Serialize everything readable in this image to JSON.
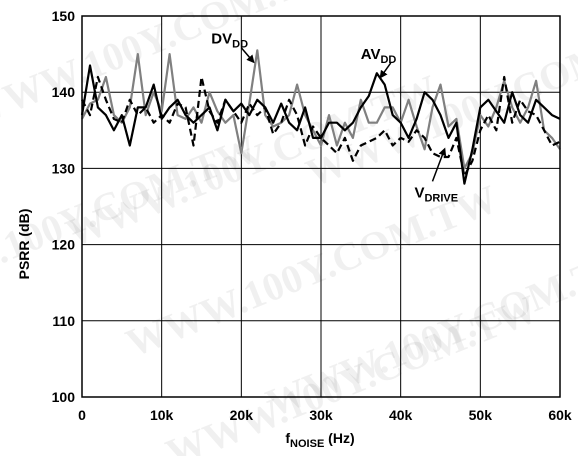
{
  "chart_data": {
    "type": "line",
    "xlabel": {
      "main": "f",
      "sub": "NOISE",
      "unit": " (Hz)"
    },
    "ylabel": "PSRR (dB)",
    "xlim": [
      0,
      60000
    ],
    "ylim": [
      100,
      150
    ],
    "x_ticks": [
      0,
      10000,
      20000,
      30000,
      40000,
      50000,
      60000
    ],
    "x_tick_labels": [
      "0",
      "10k",
      "20k",
      "30k",
      "40k",
      "50k",
      "60k"
    ],
    "y_ticks": [
      100,
      110,
      120,
      130,
      140,
      150
    ],
    "y_tick_labels": [
      "100",
      "110",
      "120",
      "130",
      "140",
      "150"
    ],
    "grid": true,
    "x": [
      0,
      1000,
      2000,
      3000,
      4000,
      5000,
      6000,
      7000,
      8000,
      9000,
      10000,
      11000,
      12000,
      13000,
      14000,
      15000,
      16000,
      17000,
      18000,
      19000,
      20000,
      21000,
      22000,
      23000,
      24000,
      25000,
      26000,
      27000,
      28000,
      29000,
      30000,
      31000,
      32000,
      33000,
      34000,
      35000,
      36000,
      37000,
      38000,
      39000,
      40000,
      41000,
      42000,
      43000,
      44000,
      45000,
      46000,
      47000,
      48000,
      49000,
      50000,
      51000,
      52000,
      53000,
      54000,
      55000,
      56000,
      57000,
      58000,
      59000,
      60000
    ],
    "series": [
      {
        "name": "DV_DD",
        "color": "#808080",
        "dash": "solid",
        "values": [
          136.5,
          138.5,
          139,
          142,
          137,
          136,
          138,
          145,
          137,
          140,
          137.5,
          145,
          137,
          136.5,
          138,
          136,
          140,
          137.5,
          136,
          137,
          132,
          138.5,
          145.5,
          137,
          135.5,
          136,
          137,
          141,
          137,
          135,
          133,
          137,
          133,
          136,
          134,
          139,
          136,
          136,
          138,
          138,
          136,
          139,
          135.5,
          132.5,
          138,
          141,
          135.5,
          136.5,
          130,
          132,
          137,
          135.5,
          138,
          141.5,
          138,
          136,
          138,
          141.5,
          135,
          134,
          132.5
        ]
      },
      {
        "name": "AV_DD",
        "color": "#000000",
        "dash": "solid",
        "values": [
          137,
          143.5,
          138,
          137,
          135,
          137,
          133,
          138,
          138,
          141,
          136.5,
          138,
          139,
          137,
          136,
          137,
          138,
          135,
          139,
          137.5,
          138.5,
          137,
          139,
          138,
          136,
          138.5,
          136,
          135,
          138,
          134,
          134,
          136,
          136,
          135,
          136,
          138,
          139.5,
          142.5,
          141,
          137,
          136,
          134,
          136.5,
          140,
          139,
          137,
          134,
          136,
          128,
          132.5,
          138,
          139,
          137.5,
          136,
          140,
          137,
          136,
          139,
          138,
          137,
          136.5
        ]
      },
      {
        "name": "V_DRIVE",
        "color": "#000000",
        "dash": "dashed",
        "values": [
          139,
          137,
          142,
          139,
          136.5,
          136,
          139,
          137,
          138,
          136,
          137,
          136,
          138.5,
          138,
          133,
          142,
          137.5,
          136,
          139,
          137.5,
          136,
          138.5,
          137,
          138,
          134.5,
          136,
          139,
          137,
          133,
          135.5,
          134,
          133,
          132,
          134,
          131,
          133,
          133.5,
          134,
          135,
          133,
          134,
          133.5,
          135,
          134,
          132,
          131.5,
          131.5,
          134,
          129,
          131,
          135,
          137,
          135,
          142,
          136,
          139,
          137.5,
          137,
          135,
          133,
          133.5
        ]
      }
    ],
    "annotations": [
      {
        "main": "DV",
        "sub": "DD",
        "series": "DV_DD",
        "at_x": 21500,
        "arrow_to_y": 144
      },
      {
        "main": "AV",
        "sub": "DD",
        "series": "AV_DD",
        "at_x": 37500,
        "arrow_to_y": 142
      },
      {
        "main": "V",
        "sub": "DRIVE",
        "series": "V_DRIVE",
        "at_x": 45500,
        "arrow_to_y": 132.5
      }
    ]
  },
  "watermark": "WWW.100Y.COM.TW"
}
